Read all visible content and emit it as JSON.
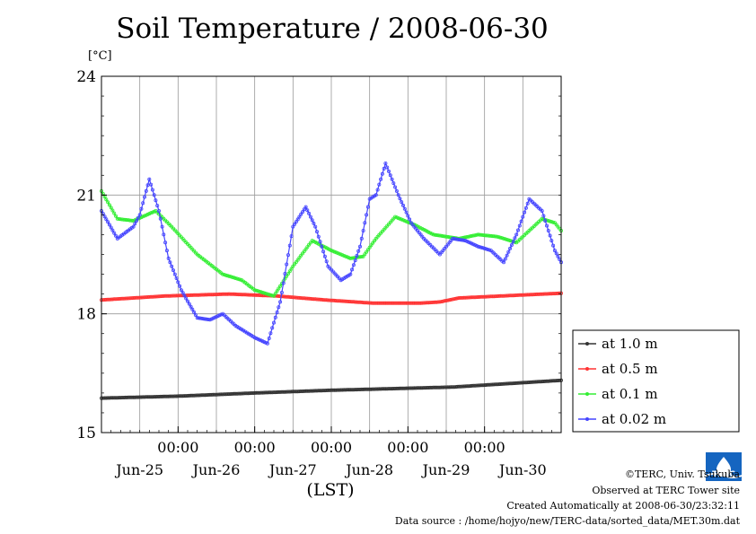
{
  "chart_data": {
    "type": "line",
    "title": "Soil Temperature / 2008-06-30",
    "ylabel": "[°C]",
    "xlabel": "(LST)",
    "ylim": [
      15,
      24
    ],
    "yticks": [
      "15",
      "18",
      "21",
      "24"
    ],
    "xlim": [
      0,
      144
    ],
    "time_ticks": [
      {
        "x": 24,
        "label": "00:00"
      },
      {
        "x": 48,
        "label": "00:00"
      },
      {
        "x": 72,
        "label": "00:00"
      },
      {
        "x": 96,
        "label": "00:00"
      },
      {
        "x": 120,
        "label": "00:00"
      }
    ],
    "date_labels": [
      {
        "x": 12,
        "label": "Jun-25"
      },
      {
        "x": 36,
        "label": "Jun-26"
      },
      {
        "x": 60,
        "label": "Jun-27"
      },
      {
        "x": 84,
        "label": "Jun-28"
      },
      {
        "x": 108,
        "label": "Jun-29"
      },
      {
        "x": 132,
        "label": "Jun-30"
      }
    ],
    "grid": true,
    "legend_position": "right",
    "series": [
      {
        "name": "at 1.0 m",
        "color": "#333333",
        "points": [
          [
            0,
            15.87
          ],
          [
            24,
            15.92
          ],
          [
            48,
            16.0
          ],
          [
            72,
            16.07
          ],
          [
            96,
            16.12
          ],
          [
            110,
            16.15
          ],
          [
            130,
            16.25
          ],
          [
            144,
            16.32
          ]
        ]
      },
      {
        "name": "at 0.5 m",
        "color": "#ff3333",
        "points": [
          [
            0,
            18.35
          ],
          [
            20,
            18.45
          ],
          [
            40,
            18.5
          ],
          [
            55,
            18.45
          ],
          [
            70,
            18.35
          ],
          [
            85,
            18.27
          ],
          [
            100,
            18.27
          ],
          [
            106,
            18.3
          ],
          [
            112,
            18.4
          ],
          [
            125,
            18.45
          ],
          [
            144,
            18.52
          ]
        ]
      },
      {
        "name": "at 0.1 m",
        "color": "#33ee33",
        "points": [
          [
            0,
            21.1
          ],
          [
            5,
            20.4
          ],
          [
            10,
            20.35
          ],
          [
            17,
            20.6
          ],
          [
            22,
            20.2
          ],
          [
            30,
            19.5
          ],
          [
            38,
            19.0
          ],
          [
            44,
            18.85
          ],
          [
            48,
            18.6
          ],
          [
            54,
            18.45
          ],
          [
            60,
            19.2
          ],
          [
            66,
            19.85
          ],
          [
            72,
            19.6
          ],
          [
            78,
            19.4
          ],
          [
            82,
            19.45
          ],
          [
            86,
            19.9
          ],
          [
            92,
            20.45
          ],
          [
            98,
            20.25
          ],
          [
            104,
            20.0
          ],
          [
            112,
            19.9
          ],
          [
            118,
            20.0
          ],
          [
            124,
            19.95
          ],
          [
            130,
            19.8
          ],
          [
            138,
            20.4
          ],
          [
            142,
            20.3
          ],
          [
            144,
            20.1
          ]
        ]
      },
      {
        "name": "at 0.02 m",
        "color": "#4444ff",
        "points": [
          [
            0,
            20.6
          ],
          [
            5,
            19.9
          ],
          [
            10,
            20.2
          ],
          [
            12,
            20.5
          ],
          [
            15,
            21.4
          ],
          [
            18,
            20.6
          ],
          [
            21,
            19.4
          ],
          [
            25,
            18.6
          ],
          [
            30,
            17.9
          ],
          [
            34,
            17.85
          ],
          [
            38,
            18.0
          ],
          [
            42,
            17.7
          ],
          [
            48,
            17.4
          ],
          [
            52,
            17.25
          ],
          [
            56,
            18.3
          ],
          [
            60,
            20.2
          ],
          [
            64,
            20.7
          ],
          [
            67,
            20.2
          ],
          [
            71,
            19.2
          ],
          [
            75,
            18.85
          ],
          [
            78,
            19.0
          ],
          [
            81,
            19.7
          ],
          [
            84,
            20.9
          ],
          [
            86,
            21.0
          ],
          [
            89,
            21.8
          ],
          [
            93,
            21.0
          ],
          [
            97,
            20.3
          ],
          [
            101,
            19.9
          ],
          [
            106,
            19.5
          ],
          [
            110,
            19.9
          ],
          [
            114,
            19.85
          ],
          [
            118,
            19.7
          ],
          [
            122,
            19.6
          ],
          [
            126,
            19.3
          ],
          [
            130,
            20.0
          ],
          [
            134,
            20.9
          ],
          [
            138,
            20.6
          ],
          [
            142,
            19.6
          ],
          [
            144,
            19.3
          ]
        ]
      }
    ]
  },
  "credits": {
    "copyright": "©TERC, Univ. Tsukuba",
    "site": "Observed at TERC Tower site",
    "created": "Created Automatically at 2008-06-30/23:32:11",
    "source": "Data source : /home/hojyo/new/TERC-data/sorted_data/MET.30m.dat"
  },
  "logo": {
    "text": "TERC",
    "color": "#1565c0"
  }
}
